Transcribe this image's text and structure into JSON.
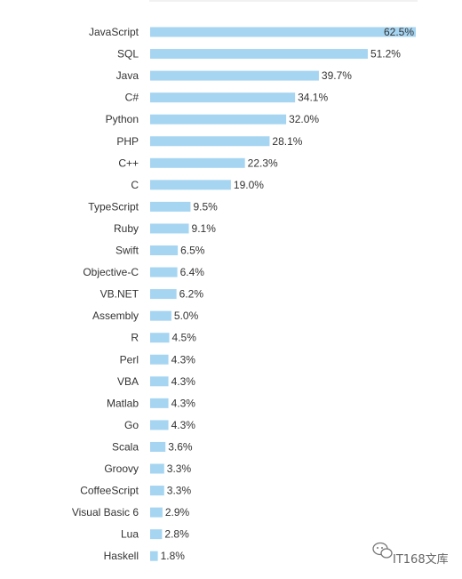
{
  "chart_data": {
    "type": "bar",
    "orientation": "horizontal",
    "categories": [
      "JavaScript",
      "SQL",
      "Java",
      "C#",
      "Python",
      "PHP",
      "C++",
      "C",
      "TypeScript",
      "Ruby",
      "Swift",
      "Objective-C",
      "VB.NET",
      "Assembly",
      "R",
      "Perl",
      "VBA",
      "Matlab",
      "Go",
      "Scala",
      "Groovy",
      "CoffeeScript",
      "Visual Basic 6",
      "Lua",
      "Haskell"
    ],
    "values": [
      62.5,
      51.2,
      39.7,
      34.1,
      32.0,
      28.1,
      22.3,
      19.0,
      9.5,
      9.1,
      6.5,
      6.4,
      6.2,
      5.0,
      4.5,
      4.3,
      4.3,
      4.3,
      4.3,
      3.6,
      3.3,
      3.3,
      2.9,
      2.8,
      1.8
    ],
    "value_labels": [
      "62.5%",
      "51.2%",
      "39.7%",
      "34.1%",
      "32.0%",
      "28.1%",
      "22.3%",
      "19.0%",
      "9.5%",
      "9.1%",
      "6.5%",
      "6.4%",
      "6.2%",
      "5.0%",
      "4.5%",
      "4.3%",
      "4.3%",
      "4.3%",
      "4.3%",
      "3.6%",
      "3.3%",
      "3.3%",
      "2.9%",
      "2.8%",
      "1.8%"
    ],
    "xlim": [
      0,
      62.5
    ],
    "title": "",
    "xlabel": "",
    "ylabel": "",
    "grid": false,
    "legend": "none",
    "colors": {
      "bar": "#a6d5f2",
      "label": "#333333",
      "label_inside": "#ffffff",
      "top_rule": "#e3e3e3"
    }
  },
  "watermark": {
    "text": "IT168文库",
    "icon": "wechat-bubble-icon"
  }
}
